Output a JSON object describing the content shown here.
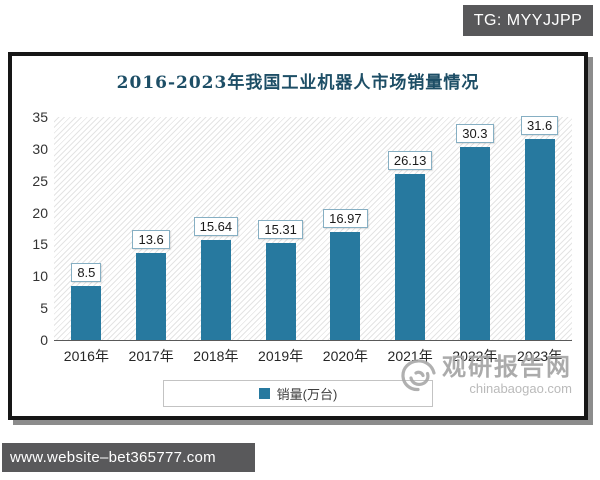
{
  "page": {
    "tg_badge": "TG: MYYJJPP",
    "site_bar": "www.website–bet365777.com"
  },
  "watermark": {
    "name": "观研报告网",
    "domain": "chinabaogao.com"
  },
  "chart_data": {
    "type": "bar",
    "title": "2016-2023年我国工业机器人市场销量情况",
    "categories": [
      "2016年",
      "2017年",
      "2018年",
      "2019年",
      "2020年",
      "2021年",
      "2022年",
      "2023年"
    ],
    "values": [
      8.5,
      13.6,
      15.64,
      15.31,
      16.97,
      26.13,
      30.3,
      31.6
    ],
    "legend": [
      "销量(万台)"
    ],
    "xlabel": "",
    "ylabel": "",
    "ylim": [
      0,
      35
    ],
    "yticks": [
      0,
      5,
      10,
      15,
      20,
      25,
      30,
      35
    ],
    "grid": false,
    "legend_position": "bottom",
    "plot_background": "diagonal-hatch",
    "bar_color": "#27799f",
    "title_color": "#1d4e66"
  }
}
